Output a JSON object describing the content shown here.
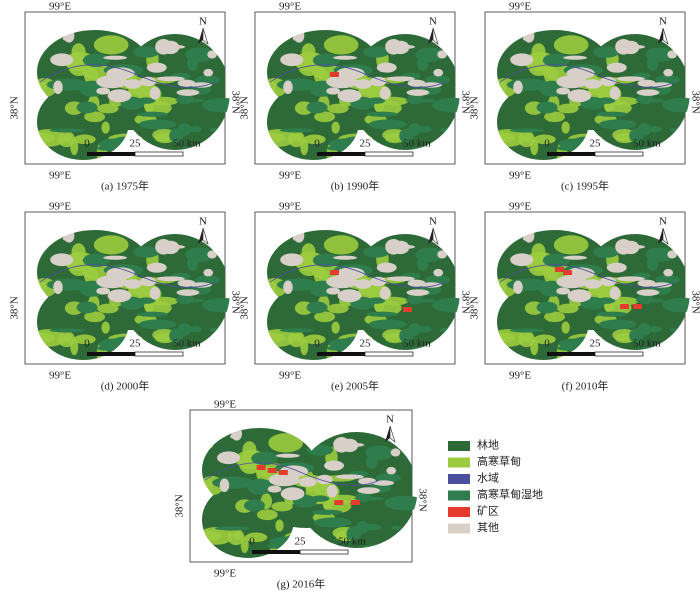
{
  "map_labels": {
    "lon": "99°E",
    "lat": "38°N",
    "north": "N",
    "scale": [
      "0",
      "25",
      "50 km"
    ]
  },
  "panels": [
    {
      "caption": "(a) 1975年"
    },
    {
      "caption": "(b) 1990年"
    },
    {
      "caption": "(c) 1995年"
    },
    {
      "caption": "(d) 2000年"
    },
    {
      "caption": "(e) 2005年"
    },
    {
      "caption": "(f) 2010年"
    },
    {
      "caption": "(g) 2016年"
    }
  ],
  "legend": [
    {
      "name": "林地",
      "color": "#2d6a37"
    },
    {
      "name": "高寒草甸",
      "color": "#9ccc3e"
    },
    {
      "name": "水域",
      "color": "#4c4f9d"
    },
    {
      "name": "高寒草甸湿地",
      "color": "#2f7d4c"
    },
    {
      "name": "矿区",
      "color": "#e53b2f"
    },
    {
      "name": "其他",
      "color": "#d8d0c8"
    }
  ]
}
